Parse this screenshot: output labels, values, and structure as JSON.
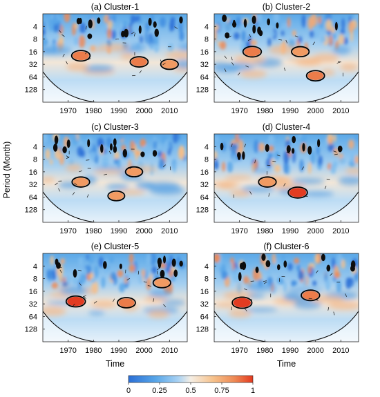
{
  "figure": {
    "ylabel": "Period (Month)",
    "xlabel": "Time"
  },
  "colorbar": {
    "ticks": [
      "0",
      "0.25",
      "0.5",
      "0.75",
      "1"
    ],
    "colors": [
      "#2b6fd6",
      "#58a6e8",
      "#a9d2f3",
      "#f5eee4",
      "#f6c28c",
      "#ee8a55",
      "#e43a1f"
    ]
  },
  "chart_data": [
    {
      "type": "heatmap",
      "title": "(a) Cluster-1",
      "xlabel": "",
      "ylabel": "Period (Month)",
      "x_ticks": [
        "1970",
        "1980",
        "1990",
        "2000",
        "2010"
      ],
      "y_ticks": [
        "4",
        "8",
        "16",
        "32",
        "64",
        "128"
      ],
      "xlim": [
        1960,
        2017
      ],
      "ylim": [
        2,
        256
      ],
      "y_scale": "log2",
      "y_reversed": true,
      "significant_regions": [
        {
          "year": 1975,
          "period": 20,
          "power": 0.8
        },
        {
          "year": 1998,
          "period": 28,
          "power": 0.75
        },
        {
          "year": 2010,
          "period": 32,
          "power": 0.7
        }
      ]
    },
    {
      "type": "heatmap",
      "title": "(b) Cluster-2",
      "xlabel": "",
      "ylabel": "",
      "x_ticks": [
        "1970",
        "1980",
        "1990",
        "2000",
        "2010"
      ],
      "y_ticks": [
        "4",
        "8",
        "16",
        "32",
        "64",
        "128"
      ],
      "xlim": [
        1960,
        2017
      ],
      "ylim": [
        2,
        256
      ],
      "y_scale": "log2",
      "y_reversed": true,
      "significant_regions": [
        {
          "year": 1975,
          "period": 16,
          "power": 0.8
        },
        {
          "year": 1994,
          "period": 16,
          "power": 0.7
        },
        {
          "year": 2000,
          "period": 60,
          "power": 0.75
        }
      ]
    },
    {
      "type": "heatmap",
      "title": "(c) Cluster-3",
      "xlabel": "",
      "ylabel": "",
      "x_ticks": [
        "1970",
        "1980",
        "1990",
        "2000",
        "2010"
      ],
      "y_ticks": [
        "4",
        "8",
        "16",
        "32",
        "64",
        "128"
      ],
      "xlim": [
        1960,
        2017
      ],
      "ylim": [
        2,
        256
      ],
      "y_scale": "log2",
      "y_reversed": true,
      "significant_regions": [
        {
          "year": 1975,
          "period": 28,
          "power": 0.7
        },
        {
          "year": 1996,
          "period": 16,
          "power": 0.65
        },
        {
          "year": 1989,
          "period": 60,
          "power": 0.6
        }
      ]
    },
    {
      "type": "heatmap",
      "title": "(d) Cluster-4",
      "xlabel": "",
      "ylabel": "",
      "x_ticks": [
        "1970",
        "1980",
        "1990",
        "2000",
        "2010"
      ],
      "y_ticks": [
        "4",
        "8",
        "16",
        "32",
        "64",
        "128"
      ],
      "xlim": [
        1960,
        2017
      ],
      "ylim": [
        2,
        256
      ],
      "y_scale": "log2",
      "y_reversed": true,
      "significant_regions": [
        {
          "year": 1981,
          "period": 28,
          "power": 0.7
        },
        {
          "year": 1993,
          "period": 50,
          "power": 0.9
        }
      ]
    },
    {
      "type": "heatmap",
      "title": "(e) Cluster-5",
      "xlabel": "Time",
      "ylabel": "Period (Month)",
      "x_ticks": [
        "1970",
        "1980",
        "1990",
        "2000",
        "2010"
      ],
      "y_ticks": [
        "4",
        "8",
        "16",
        "32",
        "64",
        "128"
      ],
      "xlim": [
        1960,
        2017
      ],
      "ylim": [
        2,
        256
      ],
      "y_scale": "log2",
      "y_reversed": true,
      "significant_regions": [
        {
          "year": 1973,
          "period": 28,
          "power": 0.9
        },
        {
          "year": 1993,
          "period": 30,
          "power": 0.75
        },
        {
          "year": 2007,
          "period": 10,
          "power": 0.7
        }
      ]
    },
    {
      "type": "heatmap",
      "title": "(f) Cluster-6",
      "xlabel": "Time",
      "ylabel": "",
      "x_ticks": [
        "1970",
        "1980",
        "1990",
        "2000",
        "2010"
      ],
      "y_ticks": [
        "4",
        "8",
        "16",
        "32",
        "64",
        "128"
      ],
      "xlim": [
        1960,
        2017
      ],
      "ylim": [
        2,
        256
      ],
      "y_scale": "log2",
      "y_reversed": true,
      "significant_regions": [
        {
          "year": 1971,
          "period": 30,
          "power": 0.95
        },
        {
          "year": 1998,
          "period": 20,
          "power": 0.8
        }
      ]
    }
  ]
}
